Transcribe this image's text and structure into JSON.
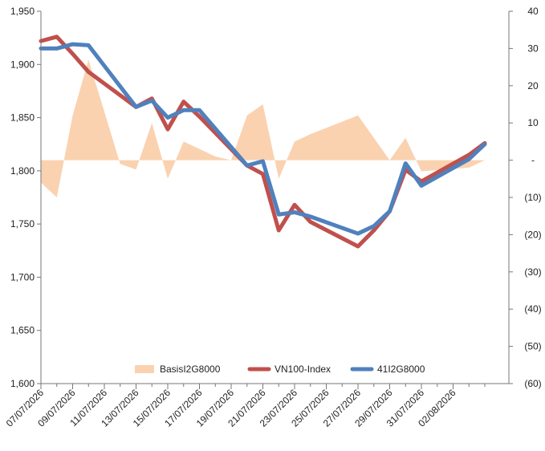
{
  "chart_data": {
    "type": "line",
    "x_axis": {
      "tick_labels": [
        "07/07/2026",
        "09/07/2026",
        "11/07/2026",
        "13/07/2026",
        "15/07/2026",
        "17/07/2026",
        "19/07/2026",
        "21/07/2026",
        "23/07/2026",
        "25/07/2026",
        "27/07/2026",
        "29/07/2026",
        "31/07/2026",
        "02/08/2026"
      ],
      "range": [
        "2026-07-07",
        "2026-08-04"
      ]
    },
    "y_left": {
      "ylim": [
        1600,
        1950
      ],
      "ticks": [
        1600,
        1650,
        1700,
        1750,
        1800,
        1850,
        1900,
        1950
      ],
      "tick_labels": [
        "1,600",
        "1,650",
        "1,700",
        "1,750",
        "1,800",
        "1,850",
        "1,900",
        "1,950"
      ]
    },
    "y_right": {
      "ylim": [
        -60,
        40
      ],
      "ticks": [
        40,
        30,
        20,
        10,
        0,
        -10,
        -20,
        -30,
        -40,
        -50,
        -60
      ],
      "tick_labels": [
        "40",
        "30",
        "20",
        "10",
        "-",
        "(10)",
        "(20)",
        "(30)",
        "(40)",
        "(50)",
        "(60)"
      ]
    },
    "legend_position": "bottom-center",
    "series": [
      {
        "name": "BasisI2G8000",
        "type": "area",
        "axis": "right",
        "color": "#fad2b0",
        "x": [
          "2026-07-07",
          "2026-07-08",
          "2026-07-09",
          "2026-07-10",
          "2026-07-11",
          "2026-07-12",
          "2026-07-13",
          "2026-07-14",
          "2026-07-15",
          "2026-07-16",
          "2026-07-17",
          "2026-07-18",
          "2026-07-19",
          "2026-07-20",
          "2026-07-21",
          "2026-07-22",
          "2026-07-23",
          "2026-07-24",
          "2026-07-27",
          "2026-07-28",
          "2026-07-29",
          "2026-07-30",
          "2026-07-31",
          "2026-08-03",
          "2026-08-04"
        ],
        "y": [
          -6,
          -10,
          12,
          27,
          13,
          -1,
          -2.5,
          10,
          -5,
          5,
          3,
          1,
          0,
          12,
          15,
          -5,
          5,
          7,
          12,
          6,
          0,
          6,
          -3,
          -2,
          0
        ]
      },
      {
        "name": "VN100-Index",
        "type": "line",
        "axis": "left",
        "color": "#c0504d",
        "x": [
          "2026-07-07",
          "2026-07-08",
          "2026-07-09",
          "2026-07-10",
          "2026-07-13",
          "2026-07-14",
          "2026-07-15",
          "2026-07-16",
          "2026-07-17",
          "2026-07-20",
          "2026-07-21",
          "2026-07-22",
          "2026-07-23",
          "2026-07-24",
          "2026-07-27",
          "2026-07-28",
          "2026-07-29",
          "2026-07-30",
          "2026-07-31",
          "2026-08-03",
          "2026-08-04"
        ],
        "y": [
          1922,
          1926,
          1910,
          1893,
          1860,
          1868,
          1839,
          1865,
          1851,
          1805,
          1797,
          1744,
          1768,
          1752,
          1729,
          1744,
          1762,
          1801,
          1790,
          1815,
          1826
        ]
      },
      {
        "name": "41I2G8000",
        "type": "line",
        "axis": "left",
        "color": "#4f81bd",
        "x": [
          "2026-07-07",
          "2026-07-08",
          "2026-07-09",
          "2026-07-10",
          "2026-07-13",
          "2026-07-14",
          "2026-07-15",
          "2026-07-16",
          "2026-07-17",
          "2026-07-20",
          "2026-07-21",
          "2026-07-22",
          "2026-07-23",
          "2026-07-24",
          "2026-07-27",
          "2026-07-28",
          "2026-07-29",
          "2026-07-30",
          "2026-07-31",
          "2026-08-03",
          "2026-08-04"
        ],
        "y": [
          1915,
          1915,
          1919,
          1918,
          1860,
          1866,
          1850,
          1857,
          1857,
          1805,
          1809,
          1759,
          1761,
          1757,
          1741,
          1748,
          1762,
          1807,
          1786,
          1811,
          1825
        ]
      }
    ]
  }
}
